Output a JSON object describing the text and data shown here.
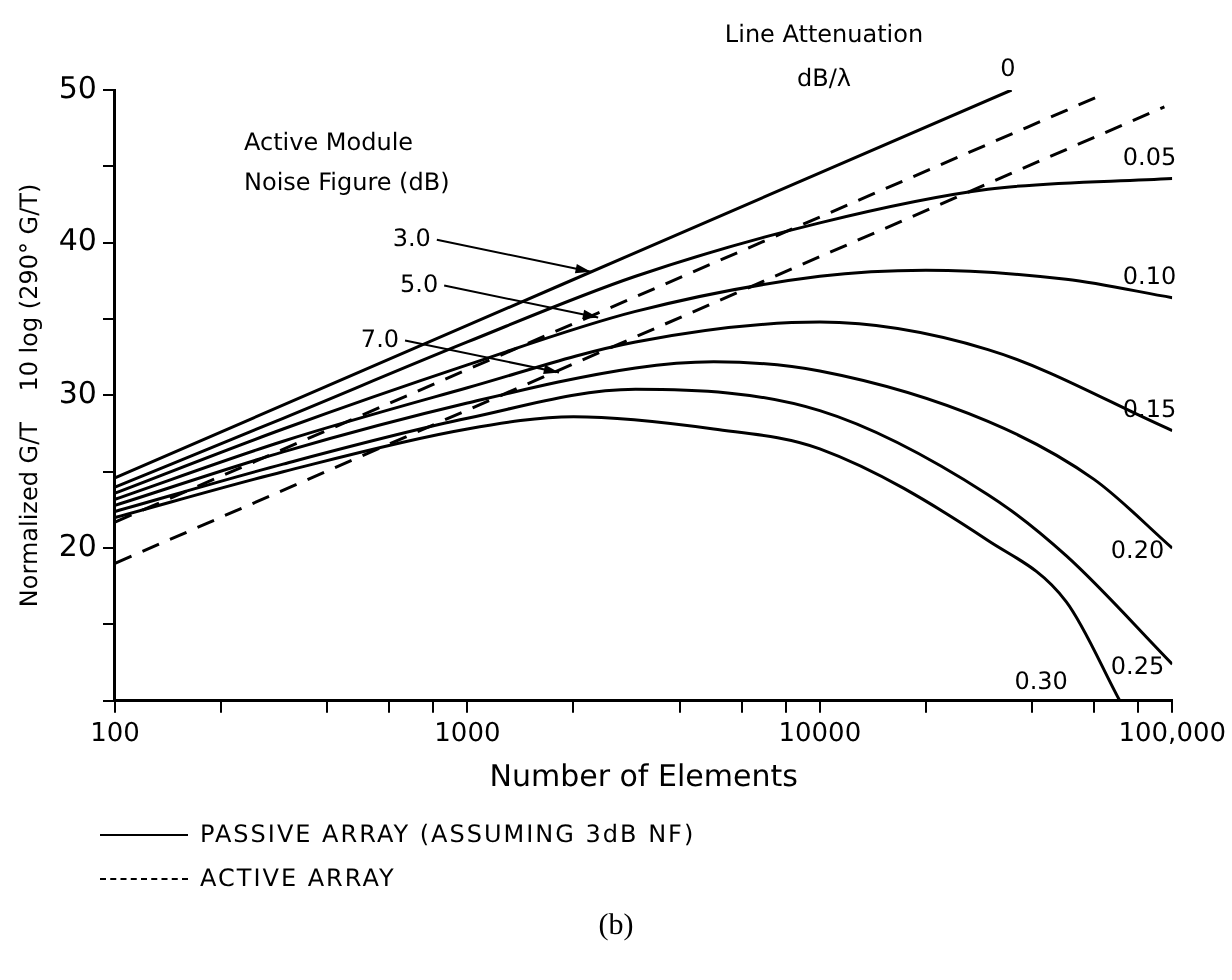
{
  "chart_data": {
    "type": "line",
    "xlabel": "Number of Elements",
    "ylabel": "Normalized G/T    10 log (290° G/T)",
    "log": "x",
    "grid": false,
    "legend": false,
    "marker": "none",
    "xlim": [
      100,
      100000
    ],
    "xticks": [
      100,
      {
        "value": 200,
        "label": null
      },
      {
        "value": 400,
        "label": null
      },
      {
        "value": 600,
        "label": null
      },
      {
        "value": 800,
        "label": null
      },
      1000,
      {
        "value": 2000,
        "label": null
      },
      {
        "value": 4000,
        "label": null
      },
      {
        "value": 6000,
        "label": null
      },
      {
        "value": 8000,
        "label": null
      },
      10000,
      {
        "value": 20000,
        "label": null
      },
      {
        "value": 40000,
        "label": null
      },
      {
        "value": 60000,
        "label": null
      },
      {
        "value": 80000,
        "label": null
      },
      {
        "value": 100000,
        "label": "100,000"
      }
    ],
    "ylim": [
      10,
      50
    ],
    "yticks": [
      {
        "value": 10,
        "label": null
      },
      {
        "value": 15,
        "label": null
      },
      20,
      {
        "value": 25,
        "label": null
      },
      30,
      {
        "value": 35,
        "label": null
      },
      40,
      {
        "value": 45,
        "label": null
      },
      50
    ],
    "series": [
      {
        "name": "0",
        "color": "#000000",
        "line_style": "solid",
        "x": [
          100,
          35000
        ],
        "values": [
          24.6,
          50
        ]
      },
      {
        "name": "0.05",
        "color": "#000000",
        "line_style": "solid",
        "x": [
          100,
          300,
          1000,
          3000,
          10000,
          30000,
          100000
        ],
        "values": [
          24,
          28.5,
          33.5,
          37.8,
          41.3,
          43.5,
          44.2
        ]
      },
      {
        "name": "0.10",
        "color": "#000000",
        "line_style": "solid",
        "x": [
          100,
          300,
          1000,
          3000,
          10000,
          20000,
          50000,
          100000
        ],
        "values": [
          23.6,
          27.8,
          32,
          35.5,
          37.8,
          38.2,
          37.6,
          36.4
        ]
      },
      {
        "name": "0.15",
        "color": "#000000",
        "line_style": "solid",
        "x": [
          100,
          300,
          1000,
          3000,
          10000,
          30000,
          100000
        ],
        "values": [
          23.2,
          27,
          30.5,
          33.5,
          34.8,
          33,
          27.7
        ]
      },
      {
        "name": "0.20",
        "color": "#000000",
        "line_style": "solid",
        "x": [
          100,
          300,
          1000,
          3000,
          5000,
          10000,
          30000,
          60000,
          100000
        ],
        "values": [
          22.8,
          26.3,
          29.5,
          31.8,
          32.2,
          31.6,
          28.3,
          24.5,
          20
        ]
      },
      {
        "name": "0.25",
        "color": "#000000",
        "line_style": "solid",
        "x": [
          100,
          300,
          1000,
          3000,
          10000,
          30000,
          50000,
          100000
        ],
        "values": [
          22.4,
          25.5,
          28.5,
          30.4,
          29,
          23.5,
          19.5,
          12.4
        ]
      },
      {
        "name": "0.30",
        "color": "#000000",
        "line_style": "solid",
        "x": [
          100,
          300,
          1000,
          2000,
          5000,
          10000,
          30000,
          50000,
          71000
        ],
        "values": [
          22,
          25,
          27.8,
          28.6,
          27.8,
          26.5,
          20.5,
          16.5,
          10
        ]
      },
      {
        "color": "#000000",
        "line_style": "dashed",
        "x": [
          100,
          62000
        ],
        "values": [
          21.7,
          49.6
        ]
      },
      {
        "color": "#000000",
        "line_style": "dashed",
        "x": [
          100,
          95000
        ],
        "values": [
          19,
          48.9
        ]
      }
    ],
    "annotations": [
      "Line Attenuation",
      "dB/λ",
      "Active Module",
      "Noise Figure (dB)",
      "PASSIVE ARRAY (ASSUMING 3dB NF)",
      "ACTIVE ARRAY",
      "(b)",
      {
        "text": "3.0",
        "x": 2240,
        "y": 38.1
      },
      {
        "text": "5.0",
        "x": 2350,
        "y": 35.1
      },
      {
        "text": "7.0",
        "x": 1820,
        "y": 31.5
      }
    ]
  }
}
